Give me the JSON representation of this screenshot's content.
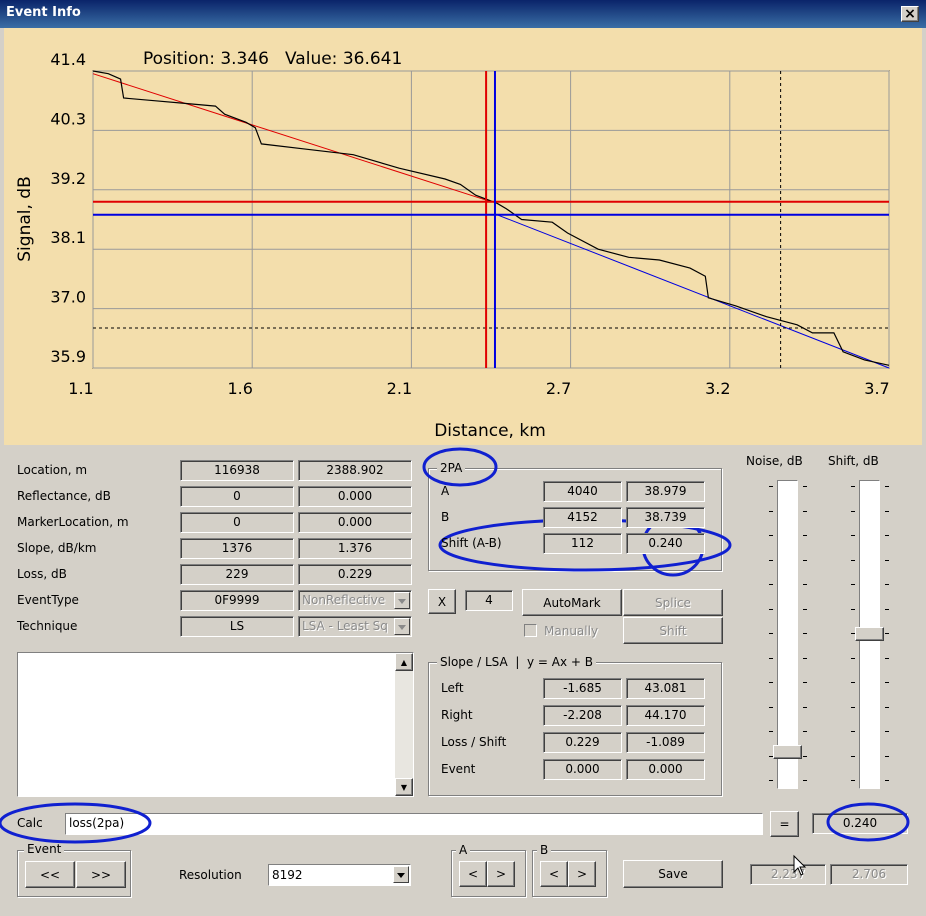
{
  "window": {
    "title": "Event Info",
    "close": "×"
  },
  "chart": {
    "type": "line",
    "position_label": "Position: 3.346",
    "value_label": "Value: 36.641",
    "y_label": "Signal, dB",
    "x_label": "Distance, km",
    "xlim": [
      1.1,
      3.7
    ],
    "ylim": [
      35.9,
      41.4
    ],
    "xticks": [
      1.1,
      {
        "value": 1.62,
        "label": "1.6"
      },
      {
        "value": 2.14,
        "label": "2.1"
      },
      {
        "value": 2.66,
        "label": "2.7"
      },
      {
        "value": 3.18,
        "label": "3.2"
      },
      3.7
    ],
    "yticks": [
      41.4,
      40.3,
      39.2,
      38.1,
      {
        "value": 37.0,
        "label": "37.0"
      },
      35.9
    ],
    "grid": true,
    "trace": {
      "color": "#000000",
      "x": [
        1.1,
        1.15,
        1.19,
        1.2,
        1.3,
        1.4,
        1.5,
        1.53,
        1.6,
        1.63,
        1.65,
        1.8,
        1.95,
        2.1,
        2.25,
        2.3,
        2.35,
        2.42,
        2.45,
        2.5,
        2.6,
        2.65,
        2.75,
        2.85,
        2.95,
        3.05,
        3.1,
        3.11,
        3.2,
        3.3,
        3.4,
        3.45,
        3.52,
        3.55,
        3.62,
        3.7
      ],
      "y": [
        41.4,
        41.35,
        41.25,
        40.9,
        40.85,
        40.8,
        40.75,
        40.6,
        40.45,
        40.35,
        40.05,
        39.95,
        39.85,
        39.6,
        39.4,
        39.3,
        39.1,
        38.95,
        38.85,
        38.65,
        38.6,
        38.4,
        38.1,
        37.95,
        37.9,
        37.75,
        37.6,
        37.2,
        37.05,
        36.85,
        36.7,
        36.55,
        36.55,
        36.2,
        36.05,
        35.95
      ]
    },
    "fit_a": {
      "color": "#e00000",
      "x": [
        1.1,
        2.4
      ],
      "y": [
        41.35,
        38.98
      ]
    },
    "fit_b": {
      "color": "#0000e0",
      "x": [
        2.41,
        3.7
      ],
      "y": [
        38.76,
        35.9
      ]
    },
    "cursor_a": {
      "color": "#e00000",
      "x": 2.384,
      "y": 38.979
    },
    "cursor_b": {
      "color": "#0000e0",
      "x": 2.413,
      "y": 38.739
    },
    "marker": {
      "color": "#000000",
      "x": 3.346,
      "y": 36.641
    }
  },
  "params": {
    "rows": [
      {
        "label": "Location, m",
        "a": "116938",
        "b": "2388.902"
      },
      {
        "label": "Reflectance, dB",
        "a": "0",
        "b": "0.000"
      },
      {
        "label": "MarkerLocation, m",
        "a": "0",
        "b": "0.000"
      },
      {
        "label": "Slope, dB/km",
        "a": "1376",
        "b": "1.376"
      },
      {
        "label": "Loss, dB",
        "a": "229",
        "b": "0.229"
      }
    ],
    "selects": [
      {
        "label": "EventType",
        "a": "0F9999",
        "b": "NonReflective"
      },
      {
        "label": "Technique",
        "a": "LS",
        "b": "LSA - Least Sq"
      }
    ]
  },
  "twopa": {
    "title": "2PA",
    "rows": [
      {
        "label": "A",
        "a": "4040",
        "b": "38.979"
      },
      {
        "label": "B",
        "a": "4152",
        "b": "38.739"
      },
      {
        "label": "Shift (A-B)",
        "a": "112",
        "b": "0.240"
      }
    ]
  },
  "controls": {
    "x_button": "X",
    "x_value": "4",
    "automark": "AutoMark",
    "splice": "Splice",
    "manually": "Manually",
    "shift": "Shift"
  },
  "slope": {
    "title": "Slope / LSA  |  y = Ax + B",
    "rows": [
      {
        "label": "Left",
        "a": "-1.685",
        "b": "43.081"
      },
      {
        "label": "Right",
        "a": "-2.208",
        "b": "44.170"
      },
      {
        "label": "Loss / Shift",
        "a": "0.229",
        "b": "-1.089"
      },
      {
        "label": "Event",
        "a": "0.000",
        "b": "0.000"
      }
    ]
  },
  "sliders": {
    "noise": "Noise, dB",
    "shift": "Shift, dB"
  },
  "calc": {
    "label": "Calc",
    "input": "loss(2pa)",
    "equals": "=",
    "result": "0.240"
  },
  "bottom": {
    "event": "Event",
    "prev": "<<",
    "next": ">>",
    "resolution": "Resolution",
    "resolution_value": "8192",
    "a_group": "A",
    "b_group": "B",
    "left": "<",
    "right": ">",
    "save": "Save",
    "field_a": "2.237",
    "field_b": "2.706"
  }
}
